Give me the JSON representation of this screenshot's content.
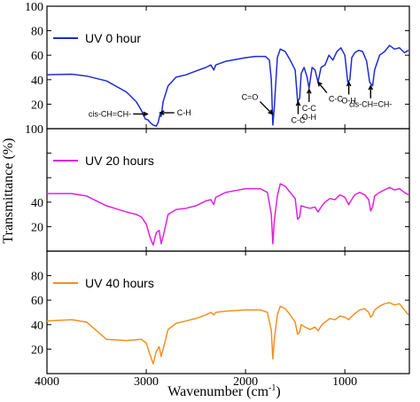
{
  "chart_data": {
    "type": "line",
    "x_label": "Wavenumber (cm",
    "x_label_sup": "-1",
    "x_label_end": ")",
    "y_label": "Transmittance (%)",
    "x_range": [
      4000,
      350
    ],
    "x_ticks": [
      4000,
      3000,
      2000,
      1000
    ],
    "x_tick_labels": [
      "4000",
      "3000",
      "2000",
      "1000"
    ],
    "panels": [
      {
        "series_name": "UV 0 hour",
        "color": "#1f2bd1",
        "ylim": [
          0,
          100
        ],
        "y_ticks": [
          0,
          20,
          40,
          60,
          80,
          100
        ],
        "y_tick_labels": [
          "",
          "20",
          "40",
          "60",
          "80",
          "100"
        ],
        "points": [
          [
            4000,
            44
          ],
          [
            3750,
            44.5
          ],
          [
            3600,
            43
          ],
          [
            3400,
            39
          ],
          [
            3200,
            30
          ],
          [
            3100,
            22
          ],
          [
            3050,
            15
          ],
          [
            3010,
            8
          ],
          [
            2980,
            7
          ],
          [
            2960,
            5
          ],
          [
            2930,
            3
          ],
          [
            2900,
            2
          ],
          [
            2880,
            5
          ],
          [
            2860,
            12
          ],
          [
            2850,
            10
          ],
          [
            2830,
            22
          ],
          [
            2780,
            35
          ],
          [
            2700,
            42
          ],
          [
            2600,
            44
          ],
          [
            2500,
            47
          ],
          [
            2400,
            50
          ],
          [
            2350,
            52
          ],
          [
            2320,
            48
          ],
          [
            2300,
            52
          ],
          [
            2200,
            55
          ],
          [
            2000,
            58
          ],
          [
            1900,
            59
          ],
          [
            1800,
            59
          ],
          [
            1760,
            56
          ],
          [
            1740,
            40
          ],
          [
            1725,
            3
          ],
          [
            1710,
            18
          ],
          [
            1680,
            58
          ],
          [
            1650,
            65
          ],
          [
            1600,
            63
          ],
          [
            1550,
            56
          ],
          [
            1500,
            48
          ],
          [
            1475,
            22
          ],
          [
            1455,
            25
          ],
          [
            1440,
            45
          ],
          [
            1410,
            50
          ],
          [
            1380,
            42
          ],
          [
            1360,
            33
          ],
          [
            1330,
            50
          ],
          [
            1300,
            48
          ],
          [
            1270,
            38
          ],
          [
            1240,
            50
          ],
          [
            1200,
            52
          ],
          [
            1160,
            60
          ],
          [
            1120,
            56
          ],
          [
            1080,
            63
          ],
          [
            1040,
            66
          ],
          [
            1000,
            60
          ],
          [
            970,
            38
          ],
          [
            950,
            40
          ],
          [
            930,
            58
          ],
          [
            900,
            62
          ],
          [
            860,
            64
          ],
          [
            820,
            63
          ],
          [
            780,
            55
          ],
          [
            750,
            38
          ],
          [
            720,
            35
          ],
          [
            700,
            48
          ],
          [
            650,
            60
          ],
          [
            600,
            63
          ],
          [
            550,
            68
          ],
          [
            500,
            65
          ],
          [
            450,
            66
          ],
          [
            400,
            62
          ],
          [
            360,
            64
          ]
        ]
      },
      {
        "series_name": "UV 20 hours",
        "color": "#e020e0",
        "ylim": [
          0,
          100
        ],
        "y_ticks": [
          0,
          20,
          40,
          60,
          80,
          100
        ],
        "y_tick_labels": [
          "",
          "20",
          "40",
          "",
          "",
          "100"
        ],
        "points": [
          [
            4000,
            47
          ],
          [
            3750,
            47
          ],
          [
            3600,
            45
          ],
          [
            3400,
            37
          ],
          [
            3200,
            32
          ],
          [
            3100,
            30
          ],
          [
            3050,
            28
          ],
          [
            3000,
            22
          ],
          [
            2960,
            11
          ],
          [
            2930,
            5
          ],
          [
            2900,
            15
          ],
          [
            2870,
            17
          ],
          [
            2850,
            6
          ],
          [
            2830,
            12
          ],
          [
            2780,
            30
          ],
          [
            2700,
            34
          ],
          [
            2600,
            35
          ],
          [
            2500,
            37
          ],
          [
            2400,
            41
          ],
          [
            2350,
            42
          ],
          [
            2320,
            38
          ],
          [
            2300,
            44
          ],
          [
            2200,
            48
          ],
          [
            2000,
            51
          ],
          [
            1850,
            51
          ],
          [
            1780,
            48
          ],
          [
            1740,
            30
          ],
          [
            1725,
            6
          ],
          [
            1710,
            25
          ],
          [
            1680,
            45
          ],
          [
            1650,
            55
          ],
          [
            1600,
            53
          ],
          [
            1550,
            48
          ],
          [
            1500,
            43
          ],
          [
            1475,
            26
          ],
          [
            1455,
            28
          ],
          [
            1440,
            37
          ],
          [
            1400,
            36
          ],
          [
            1350,
            35
          ],
          [
            1300,
            36
          ],
          [
            1270,
            32
          ],
          [
            1230,
            37
          ],
          [
            1200,
            40
          ],
          [
            1150,
            43
          ],
          [
            1100,
            42
          ],
          [
            1050,
            46
          ],
          [
            1000,
            44
          ],
          [
            960,
            38
          ],
          [
            940,
            41
          ],
          [
            900,
            46
          ],
          [
            850,
            48
          ],
          [
            800,
            46
          ],
          [
            760,
            42
          ],
          [
            740,
            33
          ],
          [
            720,
            36
          ],
          [
            700,
            45
          ],
          [
            650,
            48
          ],
          [
            600,
            50
          ],
          [
            550,
            52
          ],
          [
            500,
            50
          ],
          [
            450,
            51
          ],
          [
            400,
            48
          ],
          [
            360,
            46
          ]
        ]
      },
      {
        "series_name": "UV 40 hours",
        "color": "#f39020",
        "ylim": [
          0,
          100
        ],
        "y_ticks": [
          0,
          20,
          40,
          60,
          80,
          100
        ],
        "y_tick_labels": [
          "",
          "20",
          "40",
          "60",
          "80",
          ""
        ],
        "points": [
          [
            4000,
            43
          ],
          [
            3750,
            44
          ],
          [
            3600,
            42
          ],
          [
            3500,
            35
          ],
          [
            3400,
            28
          ],
          [
            3200,
            27
          ],
          [
            3050,
            28
          ],
          [
            3000,
            25
          ],
          [
            2960,
            15
          ],
          [
            2930,
            8
          ],
          [
            2900,
            18
          ],
          [
            2870,
            22
          ],
          [
            2850,
            14
          ],
          [
            2830,
            20
          ],
          [
            2780,
            36
          ],
          [
            2700,
            41
          ],
          [
            2600,
            43
          ],
          [
            2500,
            45
          ],
          [
            2400,
            48
          ],
          [
            2350,
            50
          ],
          [
            2320,
            48
          ],
          [
            2300,
            50
          ],
          [
            2200,
            51
          ],
          [
            2000,
            52
          ],
          [
            1850,
            52
          ],
          [
            1780,
            50
          ],
          [
            1740,
            35
          ],
          [
            1725,
            12
          ],
          [
            1710,
            28
          ],
          [
            1680,
            48
          ],
          [
            1650,
            55
          ],
          [
            1600,
            53
          ],
          [
            1550,
            48
          ],
          [
            1500,
            42
          ],
          [
            1475,
            32
          ],
          [
            1455,
            34
          ],
          [
            1440,
            40
          ],
          [
            1400,
            38
          ],
          [
            1350,
            36
          ],
          [
            1300,
            38
          ],
          [
            1270,
            35
          ],
          [
            1230,
            40
          ],
          [
            1200,
            42
          ],
          [
            1150,
            45
          ],
          [
            1100,
            44
          ],
          [
            1050,
            47
          ],
          [
            1000,
            46
          ],
          [
            960,
            44
          ],
          [
            940,
            46
          ],
          [
            900,
            49
          ],
          [
            850,
            52
          ],
          [
            800,
            53
          ],
          [
            760,
            50
          ],
          [
            740,
            46
          ],
          [
            720,
            48
          ],
          [
            700,
            52
          ],
          [
            650,
            55
          ],
          [
            600,
            57
          ],
          [
            550,
            58
          ],
          [
            500,
            56
          ],
          [
            450,
            57
          ],
          [
            400,
            52
          ],
          [
            360,
            48
          ]
        ]
      }
    ],
    "annotations": [
      {
        "text": "cis-CH=CH-",
        "arrow_x": 2990,
        "arrow_y": 12,
        "side": "left"
      },
      {
        "text": "C-H",
        "arrow_x": 2860,
        "arrow_y": 13,
        "side": "right"
      },
      {
        "text": "C=O",
        "arrow_x": 1730,
        "arrow_y": 12,
        "side": "upper-left"
      },
      {
        "text": "C-C",
        "arrow_x": 1470,
        "arrow_y": 22,
        "side": "below"
      },
      {
        "text": "C-C",
        "arrow_x": 1360,
        "arrow_y": 32,
        "side": "below"
      },
      {
        "text": "O-H",
        "arrow_x": 1360,
        "arrow_y": 32,
        "side": "below2"
      },
      {
        "text": "C-C",
        "arrow_x": 1270,
        "arrow_y": 38,
        "side": "lower-right"
      },
      {
        "text": "O-H",
        "arrow_x": 960,
        "arrow_y": 38,
        "side": "below"
      },
      {
        "text": "cis-CH=CH-",
        "arrow_x": 740,
        "arrow_y": 35,
        "side": "below"
      }
    ]
  }
}
